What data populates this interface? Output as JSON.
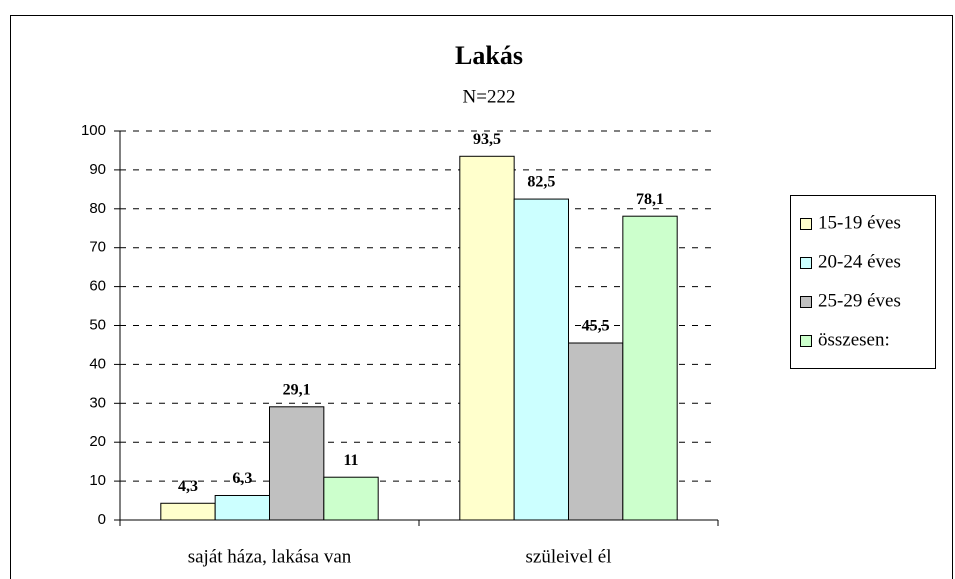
{
  "chart_data": {
    "type": "bar",
    "title": "Lakás",
    "subtitle": "N=222",
    "categories": [
      "saját háza, lakása van",
      "szüleivel él"
    ],
    "series": [
      {
        "name": "15-19 éves",
        "color": "#ffffcc",
        "values": [
          4.3,
          93.5
        ],
        "value_labels": [
          "4,3",
          "93,5"
        ]
      },
      {
        "name": "20-24 éves",
        "color": "#ccffff",
        "values": [
          6.3,
          82.5
        ],
        "value_labels": [
          "6,3",
          "82,5"
        ]
      },
      {
        "name": "25-29 éves",
        "color": "#c0c0c0",
        "values": [
          29.1,
          45.5
        ],
        "value_labels": [
          "29,1",
          "45,5"
        ]
      },
      {
        "name": "összesen:",
        "color": "#ccffcc",
        "values": [
          11,
          78.1
        ],
        "value_labels": [
          "11",
          "78,1"
        ]
      }
    ],
    "ylim": [
      0,
      100
    ],
    "yticks": [
      0,
      10,
      20,
      30,
      40,
      50,
      60,
      70,
      80,
      90,
      100
    ],
    "grid": true,
    "legend": "right"
  }
}
